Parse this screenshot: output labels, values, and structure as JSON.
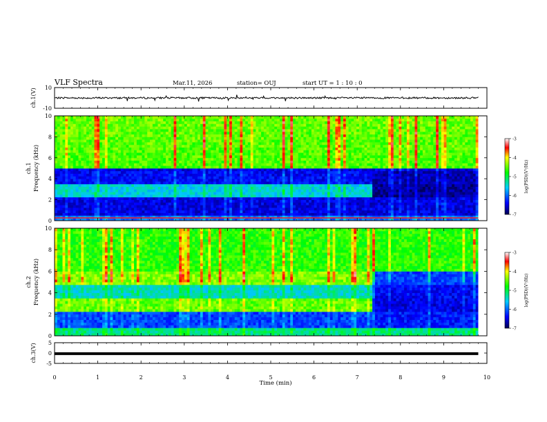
{
  "header": {
    "title": "VLF Spectra",
    "date": "Mar.11, 2026",
    "station": "station= OUJ",
    "start": "start  UT =   1 : 10 : 0"
  },
  "chart_data": [
    {
      "type": "line",
      "name": "ch.1 waveform",
      "ylabel": "ch.1(V)",
      "ylim": [
        -10,
        10
      ],
      "yticks": [
        "10",
        "-10"
      ],
      "baseline_value": 0,
      "xlim": [
        0,
        10
      ]
    },
    {
      "type": "heatmap",
      "name": "ch.1 spectrogram",
      "ylabel_top": "ch.1",
      "ylabel": "Frequency (kHz)",
      "ylim": [
        0,
        10
      ],
      "yticks": [
        "0",
        "2",
        "4",
        "6",
        "8",
        "10"
      ],
      "xlim": [
        0,
        10
      ],
      "data_end_min": 9.8,
      "change_at_min": 7.3,
      "colorbar": {
        "label": "log(PSD)(V²/Hz)",
        "ticks": [
          "-3",
          "-4",
          "-5",
          "-6",
          "-7"
        ],
        "range": [
          -7,
          -3
        ]
      }
    },
    {
      "type": "heatmap",
      "name": "ch.2 spectrogram",
      "ylabel_top": "ch.2",
      "ylabel": "Frequency (kHz)",
      "ylim": [
        0,
        10
      ],
      "yticks": [
        "0",
        "2",
        "4",
        "6",
        "8",
        "10"
      ],
      "xlim": [
        0,
        10
      ],
      "data_end_min": 9.8,
      "change_at_min": 7.3,
      "colorbar": {
        "label": "log(PSD)(V²/Hz)",
        "ticks": [
          "-3",
          "-4",
          "-5",
          "-6",
          "-7"
        ],
        "range": [
          -7,
          -3
        ]
      }
    },
    {
      "type": "line",
      "name": "ch.3 waveform",
      "ylabel": "ch.3(V)",
      "ylim": [
        -5,
        5
      ],
      "yticks": [
        "5",
        "0",
        "-5"
      ],
      "baseline_value": -0.3,
      "xlim": [
        0,
        10
      ],
      "xticks": [
        "0",
        "1",
        "2",
        "3",
        "4",
        "5",
        "6",
        "7",
        "8",
        "9",
        "10"
      ],
      "xlabel": "Time  (min)"
    }
  ]
}
